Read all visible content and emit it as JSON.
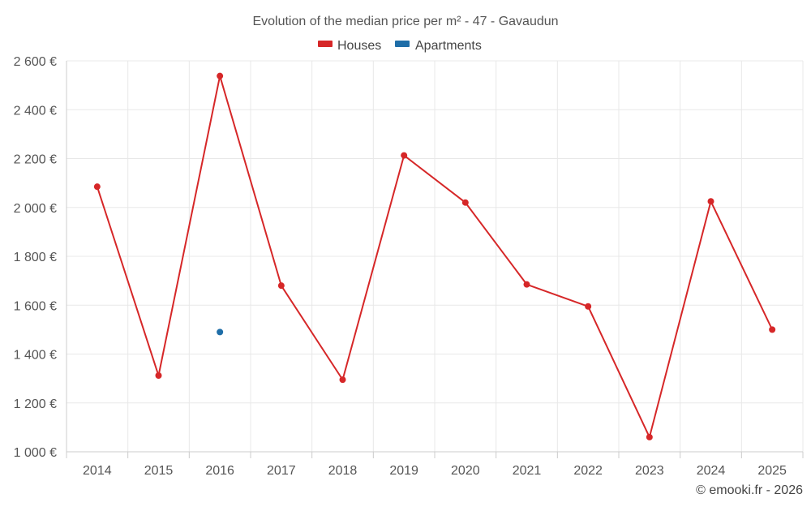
{
  "chart_data": {
    "type": "line",
    "title": "Evolution of the median price per m² - 47 - Gavaudun",
    "categories": [
      "2014",
      "2015",
      "2016",
      "2017",
      "2018",
      "2019",
      "2020",
      "2021",
      "2022",
      "2023",
      "2024",
      "2025"
    ],
    "series": [
      {
        "name": "Houses",
        "color": "#d62728",
        "values": [
          2085,
          1312,
          2538,
          1680,
          1295,
          2213,
          2020,
          1685,
          1595,
          1060,
          2025,
          1500
        ]
      },
      {
        "name": "Apartments",
        "color": "#1f6ea8",
        "values": [
          null,
          null,
          1490,
          null,
          null,
          null,
          null,
          null,
          null,
          null,
          null,
          null
        ]
      }
    ],
    "ylim": [
      1000,
      2600
    ],
    "yticks": [
      1000,
      1200,
      1400,
      1600,
      1800,
      2000,
      2200,
      2400,
      2600
    ],
    "ytick_labels": [
      "1 000 €",
      "1 200 €",
      "1 400 €",
      "1 600 €",
      "1 800 €",
      "2 000 €",
      "2 200 €",
      "2 400 €",
      "2 600 €"
    ],
    "xlabel": "",
    "ylabel": "",
    "grid": true,
    "legend_position": "top-center"
  },
  "credit": "© emooki.fr - 2026"
}
